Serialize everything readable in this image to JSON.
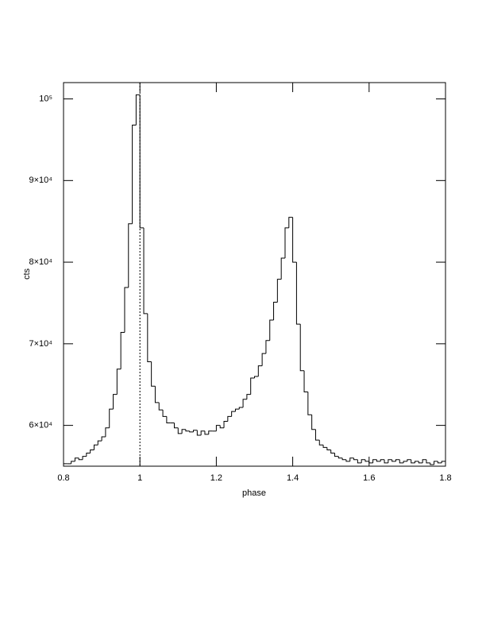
{
  "chart_data": {
    "type": "histogram",
    "xlabel": "phase",
    "ylabel": "cts",
    "bins": [
      0.8,
      0.81,
      0.82,
      0.83,
      0.84,
      0.85,
      0.86,
      0.87,
      0.88,
      0.89,
      0.9,
      0.91,
      0.92,
      0.93,
      0.94,
      0.95,
      0.96,
      0.97,
      0.98,
      0.99,
      1.0,
      1.01,
      1.02,
      1.03,
      1.04,
      1.05,
      1.06,
      1.07,
      1.08,
      1.09,
      1.1,
      1.11,
      1.12,
      1.13,
      1.14,
      1.15,
      1.16,
      1.17,
      1.18,
      1.19,
      1.2,
      1.21,
      1.22,
      1.23,
      1.24,
      1.25,
      1.26,
      1.27,
      1.28,
      1.29,
      1.3,
      1.31,
      1.32,
      1.33,
      1.34,
      1.35,
      1.36,
      1.37,
      1.38,
      1.39,
      1.4,
      1.41,
      1.42,
      1.43,
      1.44,
      1.45,
      1.46,
      1.47,
      1.48,
      1.49,
      1.5,
      1.51,
      1.52,
      1.53,
      1.54,
      1.55,
      1.56,
      1.57,
      1.58,
      1.59,
      1.6,
      1.61,
      1.62,
      1.63,
      1.64,
      1.65,
      1.66,
      1.67,
      1.68,
      1.69,
      1.7,
      1.71,
      1.72,
      1.73,
      1.74,
      1.75,
      1.76,
      1.77,
      1.78,
      1.79,
      1.8
    ],
    "values": [
      55300,
      55300,
      55600,
      56000,
      55800,
      56200,
      56600,
      57000,
      57600,
      58100,
      58600,
      59700,
      62000,
      63800,
      66900,
      71400,
      76900,
      84700,
      96800,
      100500,
      84200,
      73700,
      67800,
      64800,
      62800,
      61900,
      61100,
      60300,
      60300,
      59700,
      59000,
      59500,
      59300,
      59200,
      59400,
      58800,
      59300,
      58900,
      59300,
      59300,
      60000,
      59700,
      60500,
      61100,
      61700,
      62000,
      62200,
      63200,
      63800,
      65800,
      66000,
      67300,
      68800,
      70400,
      72900,
      75100,
      77900,
      80500,
      84200,
      85500,
      80000,
      72400,
      66700,
      64100,
      61300,
      59500,
      58200,
      57600,
      57300,
      57000,
      56600,
      56200,
      56000,
      55800,
      55600,
      56000,
      55800,
      55400,
      55800,
      55600,
      55400,
      55800,
      55600,
      55800,
      55400,
      55800,
      55600,
      55800,
      55400,
      55600,
      55800,
      55400,
      55600,
      55400,
      55800,
      55400,
      55200,
      55600,
      55400,
      55600
    ],
    "color": "#000000",
    "vline": 1,
    "xlim": [
      0.8,
      1.8
    ],
    "xticks": [
      0.8,
      1,
      1.2,
      1.4,
      1.6,
      1.8
    ],
    "ylim": [
      55000,
      102000
    ],
    "yticks": [
      {
        "value": 60000,
        "label": "6×10⁴"
      },
      {
        "value": 70000,
        "label": "7×10⁴"
      },
      {
        "value": 80000,
        "label": "8×10⁴"
      },
      {
        "value": 90000,
        "label": "9×10⁴"
      },
      {
        "value": 100000,
        "label": "10⁵"
      }
    ]
  }
}
